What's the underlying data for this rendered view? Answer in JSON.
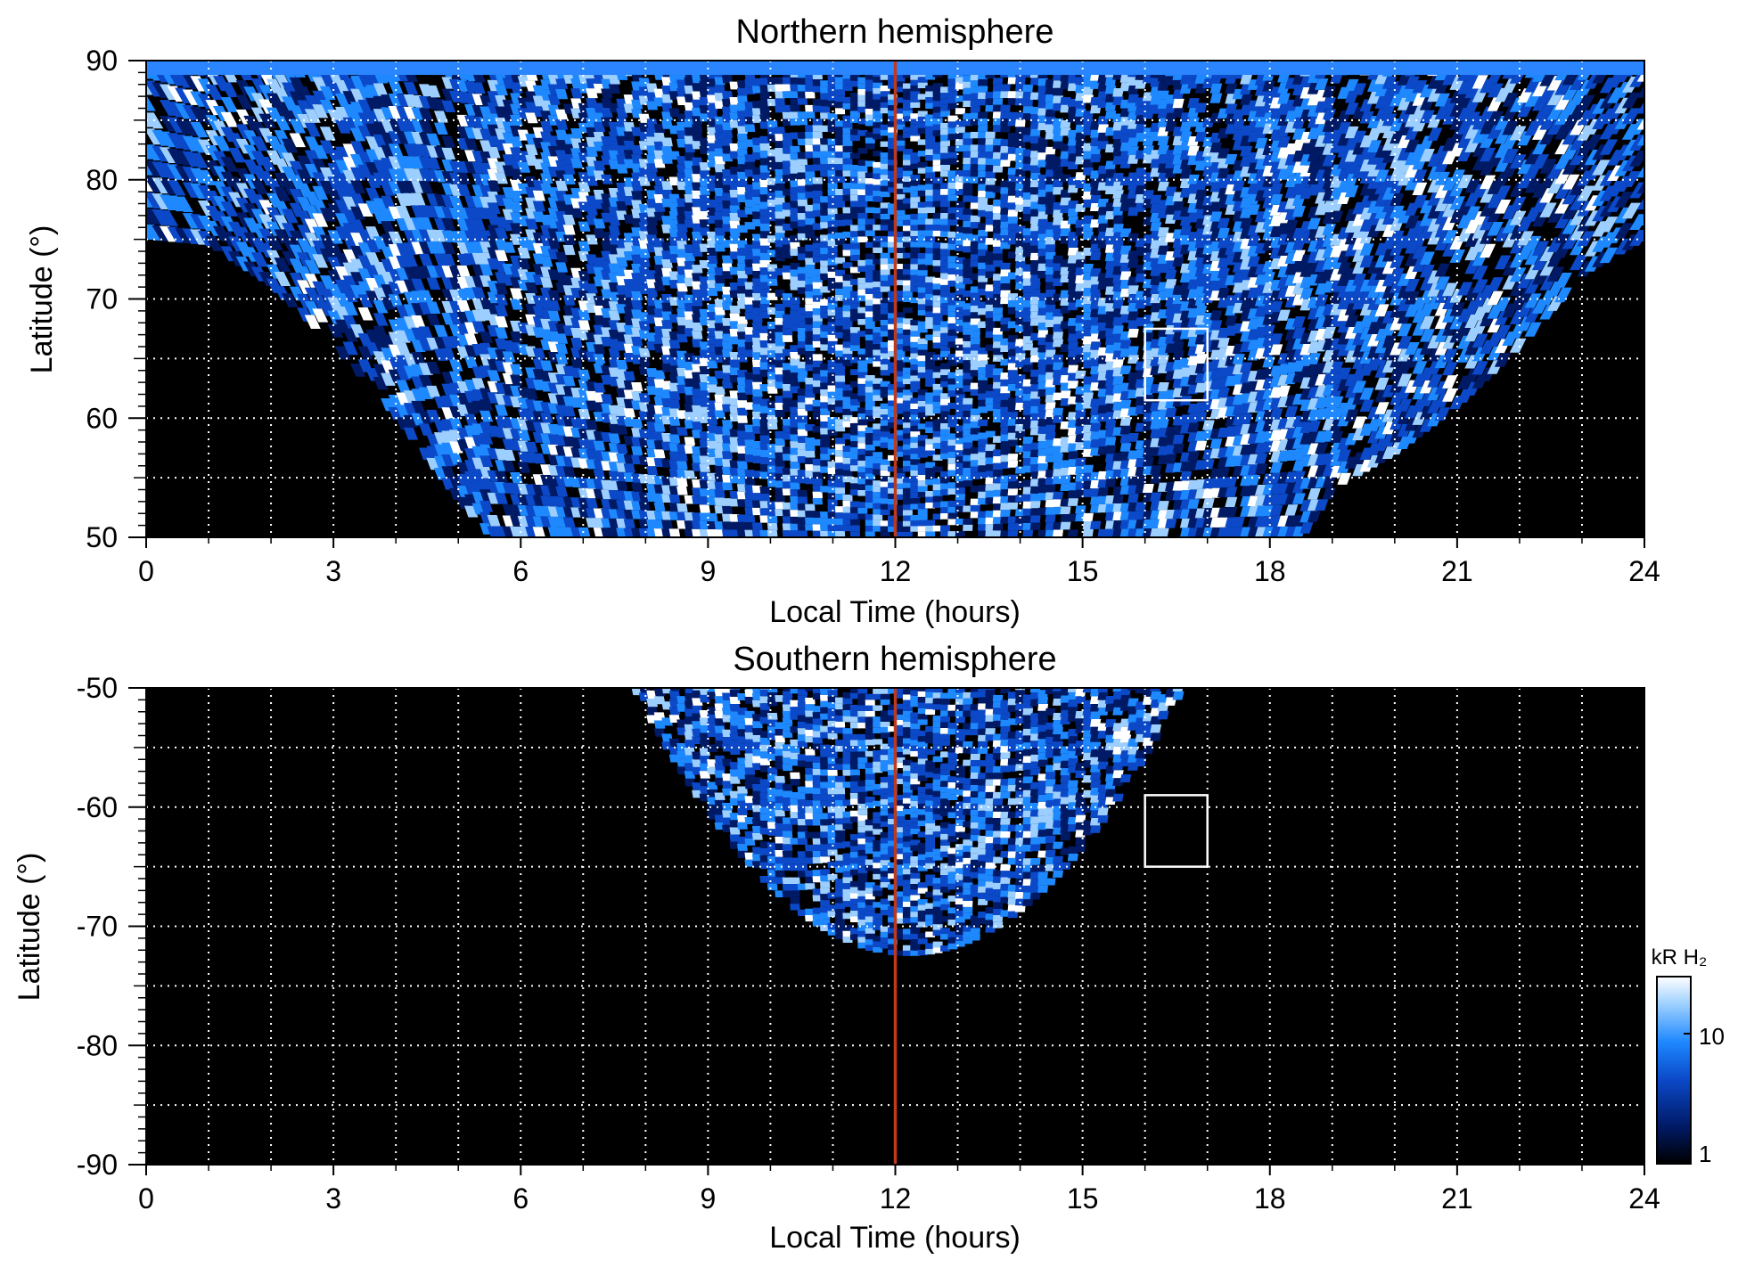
{
  "colorbar": {
    "label": "kR H₂",
    "ticks": [
      "10",
      "1"
    ],
    "scale": "log",
    "range": [
      1,
      30
    ],
    "colors": [
      "#000000",
      "#001a66",
      "#0b49c8",
      "#1e88ff",
      "#9ccfff",
      "#ffffff"
    ]
  },
  "chart_data": [
    {
      "type": "heatmap",
      "title": "Northern hemisphere",
      "xlabel": "Local Time (hours)",
      "ylabel": "Latitude (°)",
      "xlim": [
        0,
        24
      ],
      "ylim": [
        50,
        90
      ],
      "x_ticks": [
        "0",
        "3",
        "6",
        "9",
        "12",
        "15",
        "18",
        "21",
        "24"
      ],
      "y_ticks": [
        "90",
        "80",
        "70",
        "60",
        "50"
      ],
      "x_minor_grid_step": 1,
      "y_grid_step": 5,
      "grid": true,
      "reference_line": {
        "local_time": 12,
        "color": "#c0391b"
      },
      "highlight_box": {
        "local_time": [
          16,
          17
        ],
        "latitude": [
          61.5,
          67.5
        ]
      },
      "coverage": "Dense auroral H2 emission over most local times; lower latitude limit approx. 75° at 0 h, 65° at 3 h, 50° from 5 h to 19 h, 60° at 21 h, 75° at 24 h"
    },
    {
      "type": "heatmap",
      "title": "Southern hemisphere",
      "xlabel": "Local Time (hours)",
      "ylabel": "Latitude (°)",
      "xlim": [
        0,
        24
      ],
      "ylim": [
        -90,
        -50
      ],
      "x_ticks": [
        "0",
        "3",
        "6",
        "9",
        "12",
        "15",
        "18",
        "21",
        "24"
      ],
      "y_ticks": [
        "-50",
        "-60",
        "-70",
        "-80",
        "-90"
      ],
      "x_minor_grid_step": 1,
      "y_grid_step": 5,
      "grid": true,
      "reference_line": {
        "local_time": 12,
        "color": "#c0391b"
      },
      "highlight_box": {
        "local_time": [
          16,
          17
        ],
        "latitude": [
          -65,
          -59
        ]
      },
      "coverage": "Emission confined to approx. 7.8–16.5 h local time, from -50° down to about -72° near noon"
    }
  ]
}
